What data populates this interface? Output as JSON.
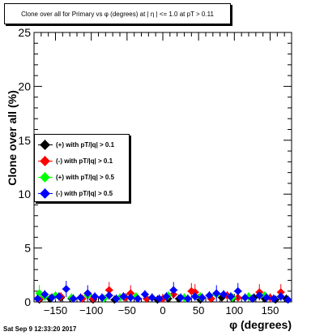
{
  "chart_data": {
    "type": "scatter",
    "title": "Clone  over all for Primary vs φ (degrees) at | η | <= 1.0 at pT > 0.11",
    "xlabel": "φ (degrees)",
    "ylabel": "Clone  over all (%)",
    "xlim": [
      -180,
      180
    ],
    "ylim": [
      0,
      25
    ],
    "x_ticks": [
      -150,
      -100,
      -50,
      0,
      50,
      100,
      150
    ],
    "x_tick_labels": [
      "−150",
      "−100",
      "−50",
      "0",
      "50",
      "100",
      "150"
    ],
    "y_ticks": [
      0,
      5,
      10,
      15,
      20,
      25
    ],
    "y_tick_labels": [
      "0",
      "5",
      "10",
      "15",
      "20",
      "25"
    ],
    "grid": false,
    "legend_position": "left",
    "series": [
      {
        "name": "(+) with pT/|q| > 0.1",
        "color": "#000000",
        "x": [
          -172.5,
          -157.5,
          -142.5,
          -127.5,
          -97.5,
          -82.5,
          -67.5,
          -52.5,
          -22.5,
          -7.5,
          7.5,
          22.5,
          52.5,
          67.5,
          82.5,
          97.5,
          127.5,
          142.5,
          157.5,
          172.5
        ],
        "y": [
          0.2,
          0.3,
          0.4,
          0.3,
          0.2,
          0.3,
          0.2,
          0.4,
          0.3,
          0.2,
          0.3,
          0.3,
          0.2,
          0.3,
          0.4,
          0.3,
          0.4,
          0.3,
          0.2,
          0.3
        ]
      },
      {
        "name": "(-) with pT/|q| > 0.1",
        "color": "#ff0000",
        "x": [
          -172.5,
          -142.5,
          -112.5,
          -97.5,
          -75,
          -52.5,
          -45,
          -22.5,
          0,
          15,
          40,
          45,
          67.5,
          90,
          105,
          135,
          150,
          165
        ],
        "y": [
          0.3,
          0.5,
          0.3,
          0.3,
          1.1,
          0.4,
          0.8,
          0.3,
          0.3,
          0.7,
          1.0,
          0.9,
          0.3,
          0.6,
          0.4,
          0.9,
          0.4,
          0.9
        ]
      },
      {
        "name": "(+) with pT/|q| > 0.5",
        "color": "#00ff00",
        "x": [
          -172.5,
          -165,
          -150,
          -127.5,
          -105,
          -82.5,
          -60,
          -37.5,
          -15,
          7.5,
          30,
          52.5,
          75,
          97.5,
          120,
          142.5,
          165
        ],
        "y": [
          0.8,
          0.5,
          0.6,
          0.4,
          0.6,
          0.3,
          0.4,
          0.5,
          0.4,
          0.6,
          0.4,
          0.5,
          0.7,
          0.4,
          0.5,
          0.6,
          0.5
        ]
      },
      {
        "name": "(-) with pT/|q| > 0.5",
        "color": "#0000ff",
        "x": [
          -175,
          -165,
          -155,
          -145,
          -135,
          -125,
          -115,
          -105,
          -95,
          -85,
          -75,
          -65,
          -55,
          -45,
          -35,
          -25,
          -15,
          -5,
          5,
          15,
          25,
          35,
          45,
          55,
          65,
          75,
          85,
          95,
          105,
          115,
          125,
          135,
          145,
          155,
          165,
          175
        ],
        "y": [
          0.3,
          0.7,
          0.4,
          0.5,
          1.2,
          0.3,
          0.4,
          0.8,
          0.5,
          0.4,
          0.6,
          0.3,
          0.5,
          0.4,
          0.3,
          0.7,
          0.4,
          0.3,
          0.5,
          1.1,
          0.4,
          0.3,
          0.5,
          0.4,
          0.6,
          0.8,
          0.7,
          0.5,
          1.0,
          0.4,
          0.3,
          0.6,
          0.4,
          0.3,
          0.5,
          0.2
        ]
      }
    ]
  },
  "footer": {
    "timestamp": "Sat Sep  9 12:33:20 2017"
  }
}
